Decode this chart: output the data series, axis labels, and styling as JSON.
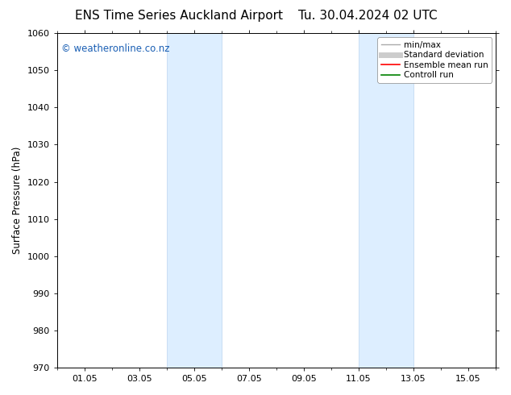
{
  "title": "ENS Time Series Auckland Airport",
  "title2": "Tu. 30.04.2024 02 UTC",
  "ylabel": "Surface Pressure (hPa)",
  "ylim": [
    970,
    1060
  ],
  "yticks": [
    970,
    980,
    990,
    1000,
    1010,
    1020,
    1030,
    1040,
    1050,
    1060
  ],
  "xtick_labels": [
    "01.05",
    "03.05",
    "05.05",
    "07.05",
    "09.05",
    "11.05",
    "13.05",
    "15.05"
  ],
  "xtick_positions": [
    1,
    3,
    5,
    7,
    9,
    11,
    13,
    15
  ],
  "xlim": [
    0,
    16
  ],
  "shaded_bands": [
    {
      "x_start": 4.0,
      "x_end": 6.0
    },
    {
      "x_start": 11.0,
      "x_end": 13.0
    }
  ],
  "shaded_color": "#ddeeff",
  "shaded_edge_color": "#bbd4ee",
  "watermark_text": "© weatheronline.co.nz",
  "watermark_color": "#1a5fb4",
  "watermark_fontsize": 8.5,
  "legend_items": [
    {
      "label": "min/max",
      "color": "#aaaaaa",
      "lw": 1.0,
      "ls": "-"
    },
    {
      "label": "Standard deviation",
      "color": "#cccccc",
      "lw": 5,
      "ls": "-"
    },
    {
      "label": "Ensemble mean run",
      "color": "red",
      "lw": 1.2,
      "ls": "-"
    },
    {
      "label": "Controll run",
      "color": "green",
      "lw": 1.2,
      "ls": "-"
    }
  ],
  "bg_color": "#ffffff",
  "title_fontsize": 11,
  "axis_fontsize": 8.5,
  "tick_fontsize": 8
}
